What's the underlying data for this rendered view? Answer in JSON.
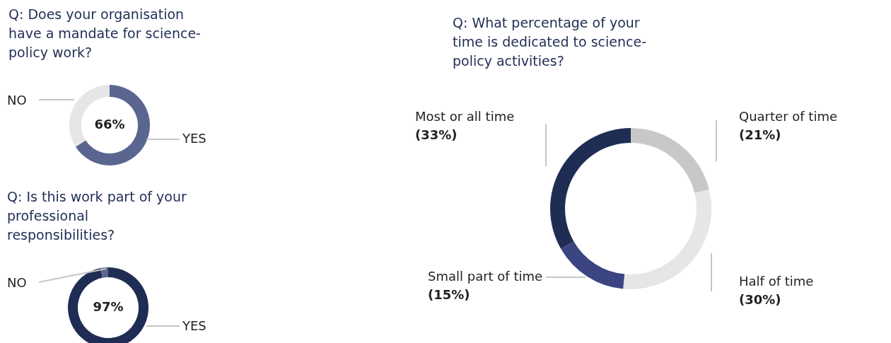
{
  "chart_data": [
    {
      "type": "donut",
      "title": "Q: Does your organisation have a mandate for science-policy work?",
      "categories": [
        "YES",
        "NO"
      ],
      "values": [
        66,
        34
      ],
      "colors": [
        "#5a6690",
        "#e6e6e6"
      ],
      "value_labels": [
        "66%",
        null
      ]
    },
    {
      "type": "donut",
      "title": "Q: Is this work part of your professional responsibilities?",
      "categories": [
        "YES",
        "NO"
      ],
      "values": [
        97,
        3
      ],
      "colors": [
        "#1f2d55",
        "#5a6690"
      ],
      "value_labels": [
        "97%",
        null
      ]
    },
    {
      "type": "donut",
      "title": "Q: What percentage of your time is dedicated to science-policy activities?",
      "categories": [
        "Quarter of time",
        "Half of time",
        "Small part of time",
        "Most or all time"
      ],
      "values": [
        21,
        30,
        15,
        33
      ],
      "colors": [
        "#c8c8c8",
        "#e6e6e6",
        "#3b4582",
        "#1f2d55"
      ],
      "value_labels": [
        "(21%)",
        "(30%)",
        "(15%)",
        "(33%)"
      ]
    }
  ]
}
